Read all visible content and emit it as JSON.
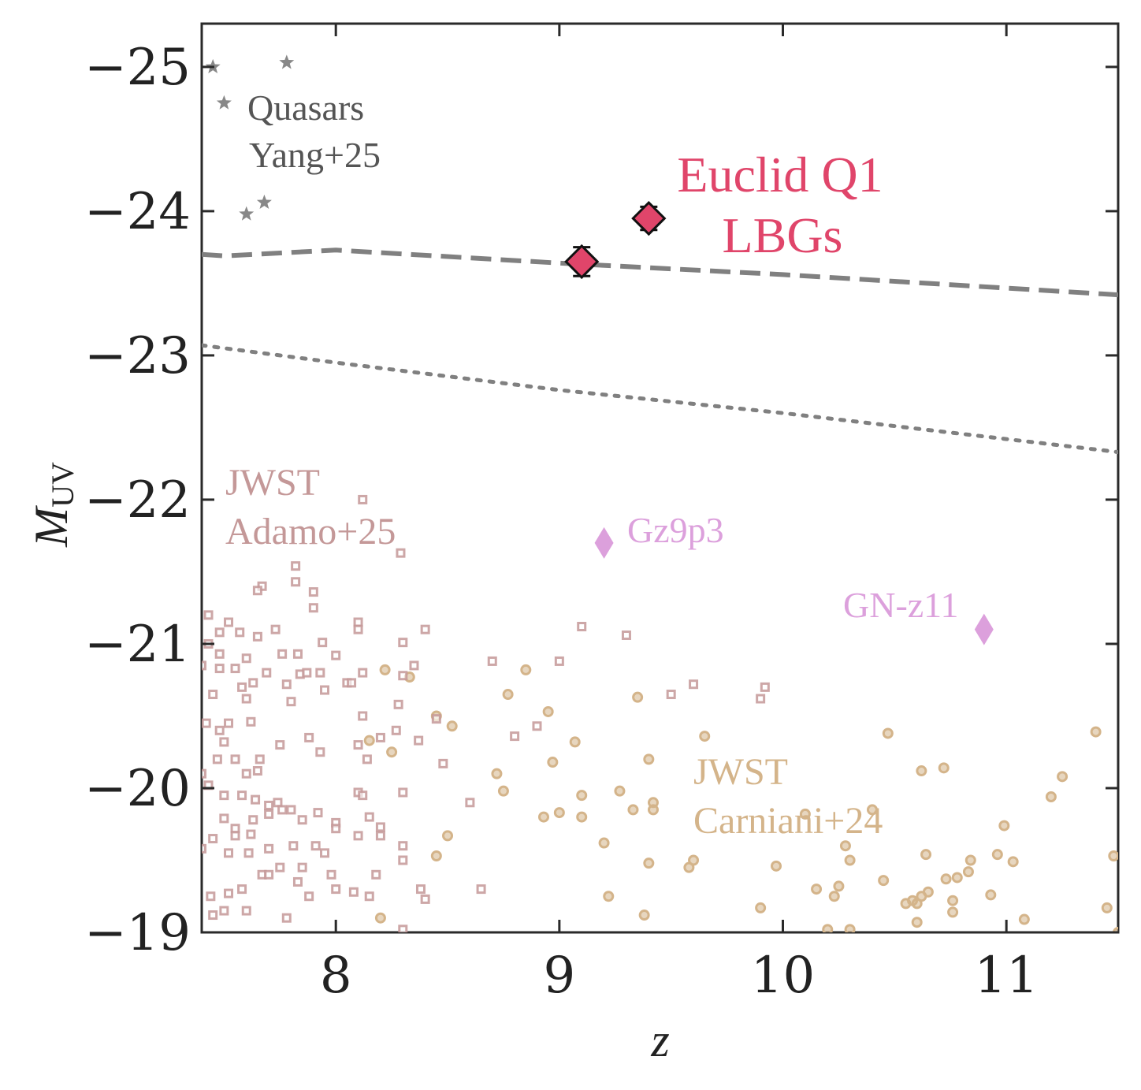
{
  "chart_data": {
    "type": "scatter",
    "xlabel": "z",
    "ylabel_main": "M",
    "ylabel_sub": "UV",
    "xlim": [
      7.4,
      11.5
    ],
    "ylim": [
      -19,
      -25.3
    ],
    "y_inverted": true,
    "xticks": [
      8,
      9,
      10,
      11
    ],
    "xtick_labels": [
      "8",
      "9",
      "10",
      "11"
    ],
    "yticks": [
      -25,
      -24,
      -23,
      -22,
      -21,
      -20,
      -19
    ],
    "ytick_labels": [
      "−25",
      "−24",
      "−23",
      "−22",
      "−21",
      "−20",
      "−19"
    ],
    "colors": {
      "euclid": "#e0456a",
      "quasar": "#888888",
      "adamo": "#c49898",
      "carniani": "#d4b48a",
      "gz9p3": "#dca0dc",
      "gn_z11": "#dca0dc",
      "limit": "#808080",
      "axis": "#2a2a2a"
    },
    "annotations": {
      "quasars_line1": "Quasars",
      "quasars_line2": "Yang+25",
      "euclid_line1": "Euclid Q1",
      "euclid_line2": "LBGs",
      "adamo_line1": "JWST",
      "adamo_line2": "Adamo+25",
      "carniani_line1": "JWST",
      "carniani_line2": "Carniani+24",
      "gz9p3": "Gz9p3",
      "gn_z11": "GN-z11"
    },
    "series": [
      {
        "name": "Euclid Q1 LBGs",
        "marker": "diamond-errorbar",
        "points": [
          {
            "z": 9.1,
            "M": -23.65,
            "err": 0.1
          },
          {
            "z": 9.4,
            "M": -23.95,
            "err": 0.08
          }
        ]
      },
      {
        "name": "Quasars Yang+25",
        "marker": "star",
        "points": [
          {
            "z": 7.45,
            "M": -25.0
          },
          {
            "z": 7.78,
            "M": -25.03
          },
          {
            "z": 7.5,
            "M": -24.75
          },
          {
            "z": 7.6,
            "M": -23.98
          },
          {
            "z": 7.68,
            "M": -24.06
          }
        ]
      },
      {
        "name": "Gz9p3",
        "marker": "diamond",
        "points": [
          {
            "z": 9.2,
            "M": -21.7
          }
        ]
      },
      {
        "name": "GN-z11",
        "marker": "diamond",
        "points": [
          {
            "z": 10.9,
            "M": -21.1
          }
        ]
      },
      {
        "name": "JWST Adamo+25",
        "marker": "square",
        "points": [
          {
            "z": 8.12,
            "M": -22.0
          },
          {
            "z": 8.29,
            "M": -21.63
          },
          {
            "z": 7.82,
            "M": -21.54
          },
          {
            "z": 7.82,
            "M": -21.43
          },
          {
            "z": 7.9,
            "M": -21.36
          },
          {
            "z": 7.67,
            "M": -21.4
          },
          {
            "z": 7.65,
            "M": -21.37
          },
          {
            "z": 7.43,
            "M": -21.2
          },
          {
            "z": 7.52,
            "M": -21.15
          },
          {
            "z": 7.48,
            "M": -21.08
          },
          {
            "z": 7.57,
            "M": -21.08
          },
          {
            "z": 7.43,
            "M": -21.0
          },
          {
            "z": 7.48,
            "M": -20.93
          },
          {
            "z": 7.48,
            "M": -20.83
          },
          {
            "z": 7.4,
            "M": -20.85
          },
          {
            "z": 7.55,
            "M": -20.83
          },
          {
            "z": 7.6,
            "M": -20.9
          },
          {
            "z": 7.65,
            "M": -21.05
          },
          {
            "z": 7.73,
            "M": -21.1
          },
          {
            "z": 7.76,
            "M": -20.93
          },
          {
            "z": 7.83,
            "M": -20.93
          },
          {
            "z": 7.94,
            "M": -21.01
          },
          {
            "z": 8.0,
            "M": -20.92
          },
          {
            "z": 8.1,
            "M": -21.15
          },
          {
            "z": 8.1,
            "M": -21.1
          },
          {
            "z": 8.3,
            "M": -21.01
          },
          {
            "z": 8.4,
            "M": -21.1
          },
          {
            "z": 7.9,
            "M": -21.25
          },
          {
            "z": 7.58,
            "M": -20.7
          },
          {
            "z": 7.63,
            "M": -20.73
          },
          {
            "z": 7.69,
            "M": -20.8
          },
          {
            "z": 7.78,
            "M": -20.72
          },
          {
            "z": 7.84,
            "M": -20.79
          },
          {
            "z": 7.87,
            "M": -20.8
          },
          {
            "z": 7.93,
            "M": -20.8
          },
          {
            "z": 8.05,
            "M": -20.73
          },
          {
            "z": 8.07,
            "M": -20.73
          },
          {
            "z": 8.12,
            "M": -20.8
          },
          {
            "z": 8.3,
            "M": -20.78
          },
          {
            "z": 8.35,
            "M": -20.85
          },
          {
            "z": 7.45,
            "M": -20.65
          },
          {
            "z": 7.6,
            "M": -20.62
          },
          {
            "z": 7.8,
            "M": -20.6
          },
          {
            "z": 7.95,
            "M": -20.68
          },
          {
            "z": 7.42,
            "M": -20.45
          },
          {
            "z": 7.52,
            "M": -20.45
          },
          {
            "z": 7.62,
            "M": -20.46
          },
          {
            "z": 7.48,
            "M": -20.4
          },
          {
            "z": 7.5,
            "M": -20.32
          },
          {
            "z": 7.47,
            "M": -20.2
          },
          {
            "z": 7.55,
            "M": -20.2
          },
          {
            "z": 7.4,
            "M": -20.1
          },
          {
            "z": 7.6,
            "M": -20.1
          },
          {
            "z": 7.66,
            "M": -20.2
          },
          {
            "z": 7.75,
            "M": -20.3
          },
          {
            "z": 7.88,
            "M": -20.35
          },
          {
            "z": 7.93,
            "M": -20.25
          },
          {
            "z": 8.1,
            "M": -20.3
          },
          {
            "z": 8.14,
            "M": -20.2
          },
          {
            "z": 8.2,
            "M": -20.35
          },
          {
            "z": 8.27,
            "M": -20.4
          },
          {
            "z": 8.37,
            "M": -20.33
          },
          {
            "z": 8.48,
            "M": -20.17
          },
          {
            "z": 8.6,
            "M": -19.9
          },
          {
            "z": 8.12,
            "M": -20.5
          },
          {
            "z": 8.28,
            "M": -20.58
          },
          {
            "z": 7.43,
            "M": -20.02
          },
          {
            "z": 7.5,
            "M": -19.95
          },
          {
            "z": 7.58,
            "M": -19.95
          },
          {
            "z": 7.64,
            "M": -19.92
          },
          {
            "z": 7.7,
            "M": -19.88
          },
          {
            "z": 7.74,
            "M": -19.9
          },
          {
            "z": 7.8,
            "M": -19.85
          },
          {
            "z": 7.85,
            "M": -19.78
          },
          {
            "z": 7.92,
            "M": -19.83
          },
          {
            "z": 8.0,
            "M": -19.76
          },
          {
            "z": 8.1,
            "M": -19.97
          },
          {
            "z": 8.15,
            "M": -19.8
          },
          {
            "z": 8.2,
            "M": -19.73
          },
          {
            "z": 8.3,
            "M": -19.97
          },
          {
            "z": 7.5,
            "M": -19.79
          },
          {
            "z": 7.55,
            "M": -19.72
          },
          {
            "z": 7.63,
            "M": -19.78
          },
          {
            "z": 7.7,
            "M": -19.82
          },
          {
            "z": 7.76,
            "M": -19.85
          },
          {
            "z": 7.45,
            "M": -19.65
          },
          {
            "z": 7.55,
            "M": -19.67
          },
          {
            "z": 7.62,
            "M": -19.68
          },
          {
            "z": 7.7,
            "M": -19.58
          },
          {
            "z": 7.81,
            "M": -19.6
          },
          {
            "z": 7.91,
            "M": -19.6
          },
          {
            "z": 7.95,
            "M": -19.55
          },
          {
            "z": 8.0,
            "M": -19.72
          },
          {
            "z": 8.1,
            "M": -19.67
          },
          {
            "z": 8.3,
            "M": -19.6
          },
          {
            "z": 7.52,
            "M": -19.55
          },
          {
            "z": 7.61,
            "M": -19.55
          },
          {
            "z": 7.4,
            "M": -19.58
          },
          {
            "z": 7.85,
            "M": -19.45
          },
          {
            "z": 7.67,
            "M": -19.4
          },
          {
            "z": 7.75,
            "M": -19.45
          },
          {
            "z": 7.83,
            "M": -19.35
          },
          {
            "z": 7.98,
            "M": -19.4
          },
          {
            "z": 8.18,
            "M": -19.4
          },
          {
            "z": 8.3,
            "M": -19.5
          },
          {
            "z": 8.38,
            "M": -19.3
          },
          {
            "z": 8.4,
            "M": -19.23
          },
          {
            "z": 8.65,
            "M": -19.3
          },
          {
            "z": 7.44,
            "M": -19.25
          },
          {
            "z": 7.52,
            "M": -19.27
          },
          {
            "z": 7.58,
            "M": -19.3
          },
          {
            "z": 7.7,
            "M": -19.4
          },
          {
            "z": 7.88,
            "M": -19.25
          },
          {
            "z": 8.0,
            "M": -19.3
          },
          {
            "z": 8.08,
            "M": -19.28
          },
          {
            "z": 8.15,
            "M": -19.25
          },
          {
            "z": 7.5,
            "M": -19.15
          },
          {
            "z": 7.6,
            "M": -19.15
          },
          {
            "z": 7.45,
            "M": -19.12
          },
          {
            "z": 7.78,
            "M": -19.1
          },
          {
            "z": 8.3,
            "M": -19.02
          },
          {
            "z": 8.7,
            "M": -20.88
          },
          {
            "z": 9.0,
            "M": -20.88
          },
          {
            "z": 9.1,
            "M": -21.12
          },
          {
            "z": 9.3,
            "M": -21.06
          },
          {
            "z": 9.5,
            "M": -20.65
          },
          {
            "z": 9.6,
            "M": -20.72
          },
          {
            "z": 9.9,
            "M": -20.62
          },
          {
            "z": 9.92,
            "M": -20.7
          },
          {
            "z": 8.8,
            "M": -20.36
          },
          {
            "z": 8.9,
            "M": -20.43
          },
          {
            "z": 8.45,
            "M": -20.48
          },
          {
            "z": 7.65,
            "M": -20.12
          },
          {
            "z": 8.12,
            "M": -19.95
          },
          {
            "z": 8.2,
            "M": -19.67
          }
        ]
      },
      {
        "name": "JWST Carniani+24",
        "marker": "circle",
        "points": [
          {
            "z": 8.33,
            "M": -20.77
          },
          {
            "z": 8.22,
            "M": -20.82
          },
          {
            "z": 8.45,
            "M": -20.5
          },
          {
            "z": 8.52,
            "M": -20.43
          },
          {
            "z": 8.15,
            "M": -20.33
          },
          {
            "z": 8.25,
            "M": -20.25
          },
          {
            "z": 8.5,
            "M": -19.67
          },
          {
            "z": 8.45,
            "M": -19.53
          },
          {
            "z": 8.2,
            "M": -19.1
          },
          {
            "z": 8.72,
            "M": -20.1
          },
          {
            "z": 8.75,
            "M": -19.98
          },
          {
            "z": 8.77,
            "M": -20.65
          },
          {
            "z": 8.85,
            "M": -20.82
          },
          {
            "z": 8.95,
            "M": -20.53
          },
          {
            "z": 8.93,
            "M": -19.8
          },
          {
            "z": 8.97,
            "M": -20.18
          },
          {
            "z": 9.0,
            "M": -19.83
          },
          {
            "z": 9.07,
            "M": -20.32
          },
          {
            "z": 9.1,
            "M": -19.95
          },
          {
            "z": 9.1,
            "M": -19.8
          },
          {
            "z": 9.2,
            "M": -19.62
          },
          {
            "z": 9.22,
            "M": -19.25
          },
          {
            "z": 9.27,
            "M": -19.98
          },
          {
            "z": 9.33,
            "M": -19.85
          },
          {
            "z": 9.35,
            "M": -20.63
          },
          {
            "z": 9.4,
            "M": -20.2
          },
          {
            "z": 9.42,
            "M": -19.9
          },
          {
            "z": 9.42,
            "M": -19.85
          },
          {
            "z": 9.4,
            "M": -19.48
          },
          {
            "z": 9.38,
            "M": -19.12
          },
          {
            "z": 9.58,
            "M": -19.45
          },
          {
            "z": 9.6,
            "M": -19.5
          },
          {
            "z": 9.65,
            "M": -20.36
          },
          {
            "z": 9.9,
            "M": -19.17
          },
          {
            "z": 9.97,
            "M": -19.46
          },
          {
            "z": 10.1,
            "M": -19.82
          },
          {
            "z": 10.2,
            "M": -19.02
          },
          {
            "z": 10.23,
            "M": -19.25
          },
          {
            "z": 10.25,
            "M": -19.32
          },
          {
            "z": 10.28,
            "M": -19.6
          },
          {
            "z": 10.3,
            "M": -19.5
          },
          {
            "z": 10.3,
            "M": -19.02
          },
          {
            "z": 10.4,
            "M": -19.85
          },
          {
            "z": 10.45,
            "M": -19.36
          },
          {
            "z": 10.47,
            "M": -20.38
          },
          {
            "z": 10.55,
            "M": -19.2
          },
          {
            "z": 10.58,
            "M": -19.22
          },
          {
            "z": 10.6,
            "M": -19.07
          },
          {
            "z": 10.6,
            "M": -19.2
          },
          {
            "z": 10.62,
            "M": -19.25
          },
          {
            "z": 10.65,
            "M": -19.28
          },
          {
            "z": 10.62,
            "M": -20.12
          },
          {
            "z": 10.64,
            "M": -19.54
          },
          {
            "z": 10.72,
            "M": -20.14
          },
          {
            "z": 10.73,
            "M": -19.37
          },
          {
            "z": 10.76,
            "M": -19.22
          },
          {
            "z": 10.76,
            "M": -19.14
          },
          {
            "z": 10.78,
            "M": -19.38
          },
          {
            "z": 10.83,
            "M": -19.42
          },
          {
            "z": 10.84,
            "M": -19.5
          },
          {
            "z": 10.93,
            "M": -19.26
          },
          {
            "z": 10.96,
            "M": -19.54
          },
          {
            "z": 10.99,
            "M": -19.74
          },
          {
            "z": 11.03,
            "M": -19.49
          },
          {
            "z": 11.08,
            "M": -19.09
          },
          {
            "z": 11.2,
            "M": -19.94
          },
          {
            "z": 11.25,
            "M": -20.08
          },
          {
            "z": 11.4,
            "M": -20.39
          },
          {
            "z": 11.45,
            "M": -19.17
          },
          {
            "z": 11.48,
            "M": -19.53
          },
          {
            "z": 11.5,
            "M": -19.0
          },
          {
            "z": 10.15,
            "M": -19.3
          }
        ]
      }
    ],
    "lines": [
      {
        "name": "dashed-limit",
        "style": "dashed",
        "x": [
          7.4,
          7.5,
          8.0,
          9.0,
          10.0,
          11.5
        ],
        "y": [
          -23.7,
          -23.69,
          -23.73,
          -23.64,
          -23.56,
          -23.42
        ]
      },
      {
        "name": "dotted-limit",
        "style": "dotted",
        "x": [
          7.4,
          8.0,
          9.0,
          10.0,
          11.0,
          11.5
        ],
        "y": [
          -23.07,
          -22.95,
          -22.76,
          -22.6,
          -22.42,
          -22.33
        ]
      }
    ]
  }
}
